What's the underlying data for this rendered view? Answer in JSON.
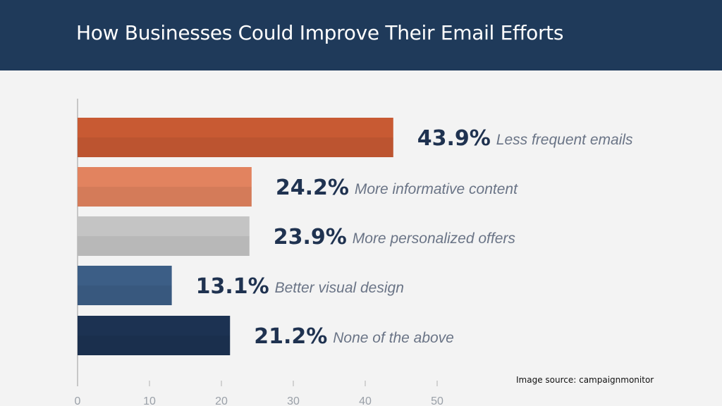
{
  "header": {
    "title": "How Businesses Could Improve Their Email Efforts"
  },
  "source": "Image source: campaignmonitor",
  "colors": {
    "background": "#f3f3f3",
    "header": "#1f3a5a",
    "value_text": "#1f3250",
    "label_text": "#6a7486"
  },
  "chart_data": {
    "type": "bar",
    "orientation": "horizontal",
    "title": "How Businesses Could Improve Their Email Efforts",
    "categories": [
      "Less frequent emails",
      "More informative content",
      "More personalized offers",
      "Better visual design",
      "None of the above"
    ],
    "values": [
      43.9,
      24.2,
      23.9,
      13.1,
      21.2
    ],
    "value_labels": [
      "43.9%",
      "24.2%",
      "23.9%",
      "13.1%",
      "21.2%"
    ],
    "bar_colors": [
      "#c85a33",
      "#e2835f",
      "#c4c4c4",
      "#3c5e86",
      "#1c3252"
    ],
    "xlim": [
      0,
      50
    ],
    "xticks": [
      0,
      10,
      20,
      30,
      40,
      50
    ],
    "xlabel": "",
    "ylabel": "",
    "grid": false,
    "legend": "none"
  }
}
